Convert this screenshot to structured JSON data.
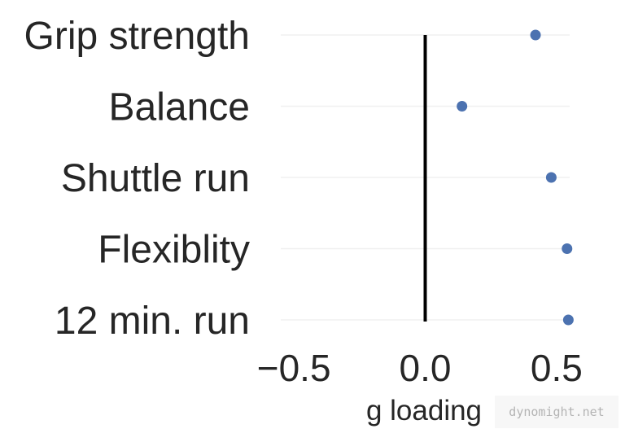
{
  "chart_data": {
    "type": "scatter",
    "categories": [
      "Grip strength",
      "Balance",
      "Shuttle run",
      "Flexiblity",
      "12 min. run"
    ],
    "values": [
      0.42,
      0.14,
      0.48,
      0.54,
      0.545
    ],
    "xlabel": "g loading",
    "ylabel": "",
    "xlim": [
      -0.55,
      0.55
    ],
    "xticks": [
      -0.5,
      0.0,
      0.5
    ],
    "xtick_labels": [
      "−0.5",
      "0.0",
      "0.5"
    ],
    "reference_line_x": 0.0,
    "grid": true,
    "marker_color": "#4c72b0",
    "reference_line_color": "#000000"
  },
  "watermark": "dynomight.net"
}
